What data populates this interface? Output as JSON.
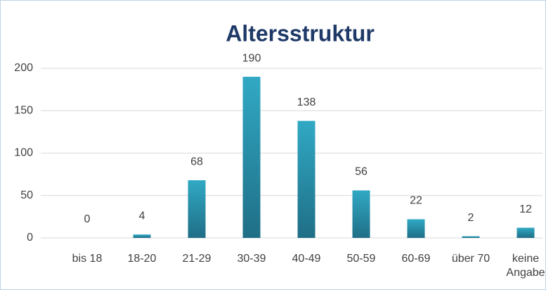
{
  "chart_data": {
    "type": "bar",
    "title": "Altersstruktur",
    "categories": [
      "bis 18",
      "18-20",
      "21-29",
      "30-39",
      "40-49",
      "50-59",
      "60-69",
      "über 70",
      "keine Angabe"
    ],
    "values": [
      0,
      4,
      68,
      190,
      138,
      56,
      22,
      2,
      12
    ],
    "color": "#2b97b3",
    "ylim": [
      0,
      200
    ],
    "yticks": [
      0,
      50,
      100,
      150,
      200
    ],
    "grid": true
  }
}
